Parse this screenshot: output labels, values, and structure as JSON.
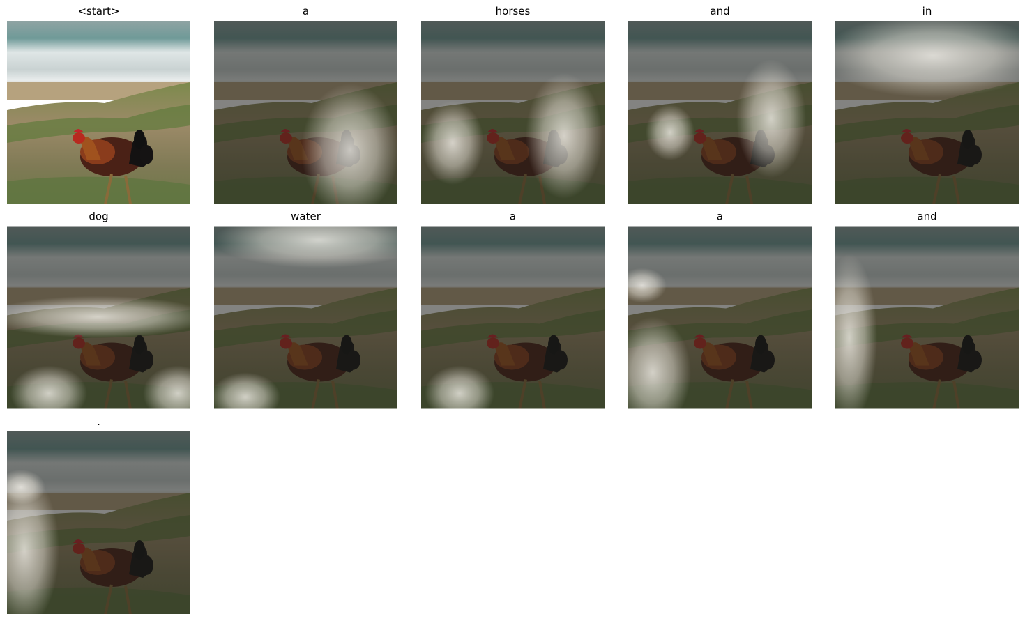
{
  "panels": [
    {
      "title": "<start>"
    },
    {
      "title": "a"
    },
    {
      "title": "horses"
    },
    {
      "title": "and"
    },
    {
      "title": "in"
    },
    {
      "title": "dog"
    },
    {
      "title": "water"
    },
    {
      "title": "a"
    },
    {
      "title": "a"
    },
    {
      "title": "and"
    },
    {
      "title": "."
    }
  ]
}
